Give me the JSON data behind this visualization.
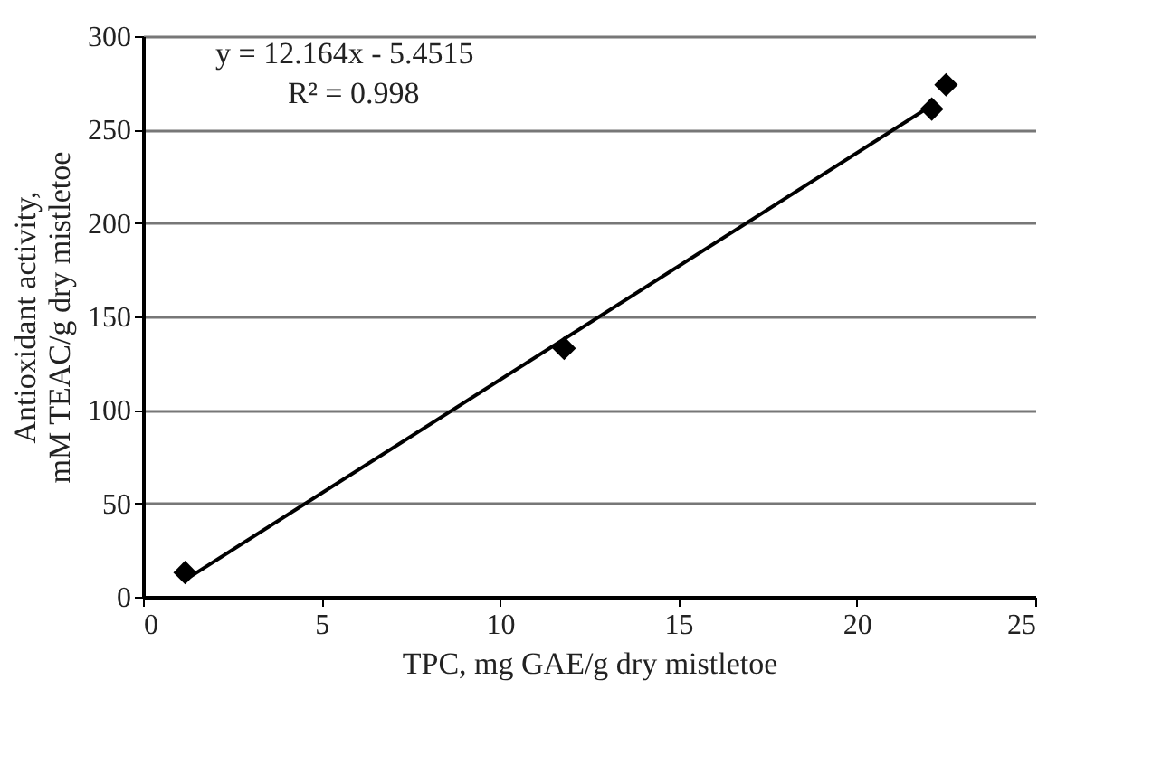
{
  "chart_data": {
    "type": "scatter",
    "xlabel": "TPC, mg GAE/g dry mistletoe",
    "ylabel": "Antioxidant activity,\nmM TEAC/g dry mistletoe",
    "series": [
      {
        "color": "#000000",
        "marker": "diamond",
        "x": [
          1.18,
          11.8,
          22.1,
          22.5
        ],
        "values": [
          13,
          133,
          261,
          274
        ]
      },
      {
        "type": "line",
        "color": "#000000",
        "line_style": "solid",
        "x": [
          1.18,
          22.1
        ],
        "values": [
          9,
          263
        ]
      }
    ],
    "annotations": [
      "y = 12.164x - 5.4515",
      "R² = 0.998"
    ],
    "xlim": [
      0,
      25
    ],
    "xticks": [
      0,
      5,
      10,
      15,
      20,
      25
    ],
    "ylim": [
      0,
      300
    ],
    "yticks": [
      0,
      50,
      100,
      150,
      200,
      250,
      300
    ],
    "grid": "y"
  }
}
